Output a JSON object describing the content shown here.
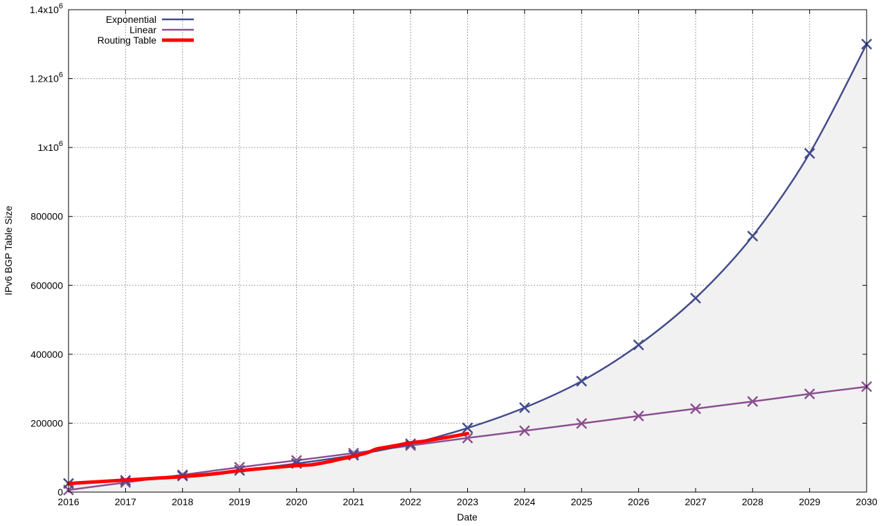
{
  "chart_data": {
    "type": "line",
    "title": "",
    "xlabel": "Date",
    "ylabel": "IPv6 BGP Table Size",
    "xlim": [
      2016,
      2030
    ],
    "ylim": [
      0,
      1400000
    ],
    "x_ticks": [
      2016,
      2017,
      2018,
      2019,
      2020,
      2021,
      2022,
      2023,
      2024,
      2025,
      2026,
      2027,
      2028,
      2029,
      2030
    ],
    "x_tick_labels": [
      "2016",
      "2017",
      "2018",
      "2019",
      "2020",
      "2021",
      "2022",
      "2023",
      "2024",
      "2025",
      "2026",
      "2027",
      "2028",
      "2029",
      "2030"
    ],
    "y_ticks": [
      {
        "value": 0,
        "base": "0",
        "exp": ""
      },
      {
        "value": 200000,
        "base": "200000",
        "exp": ""
      },
      {
        "value": 400000,
        "base": "400000",
        "exp": ""
      },
      {
        "value": 600000,
        "base": "600000",
        "exp": ""
      },
      {
        "value": 800000,
        "base": "800000",
        "exp": ""
      },
      {
        "value": 1000000,
        "base": "1x10",
        "exp": "6"
      },
      {
        "value": 1200000,
        "base": "1.2x10",
        "exp": "6"
      },
      {
        "value": 1400000,
        "base": "1.4x10",
        "exp": "6"
      }
    ],
    "grid": true,
    "legend_position": "top-left",
    "fill_under": "Exponential",
    "series": [
      {
        "name": "Exponential",
        "color": "#424b8c",
        "marker": "x",
        "x": [
          2016,
          2017,
          2018,
          2019,
          2020,
          2021,
          2022,
          2023,
          2024,
          2025,
          2026,
          2027,
          2028,
          2029,
          2030
        ],
        "values": [
          25000,
          34000,
          47000,
          63000,
          83000,
          107000,
          140000,
          186000,
          245000,
          322000,
          427000,
          563000,
          743000,
          983000,
          1300000
        ]
      },
      {
        "name": "Linear",
        "color": "#8b4f91",
        "marker": "x",
        "x": [
          2016,
          2017,
          2018,
          2019,
          2020,
          2021,
          2022,
          2023,
          2024,
          2025,
          2026,
          2027,
          2028,
          2029,
          2030
        ],
        "values": [
          6000,
          28000,
          50000,
          72000,
          92000,
          113000,
          135000,
          157000,
          178000,
          199000,
          221000,
          242000,
          263000,
          285000,
          306000
        ]
      },
      {
        "name": "Routing Table",
        "color": "#ff0000",
        "marker": "none",
        "x": [
          2016,
          2016.5,
          2017,
          2017.5,
          2018,
          2018.5,
          2019,
          2019.5,
          2020,
          2020.25,
          2020.5,
          2020.75,
          2021,
          2021.25,
          2021.4,
          2021.6,
          2021.8,
          2022,
          2022.25,
          2022.5,
          2022.75,
          2023
        ],
        "values": [
          25000,
          30000,
          35000,
          40000,
          45000,
          52000,
          62000,
          70000,
          77000,
          79000,
          86000,
          95000,
          104000,
          115000,
          125000,
          131000,
          137000,
          143000,
          148000,
          155000,
          162000,
          170000
        ]
      }
    ]
  }
}
